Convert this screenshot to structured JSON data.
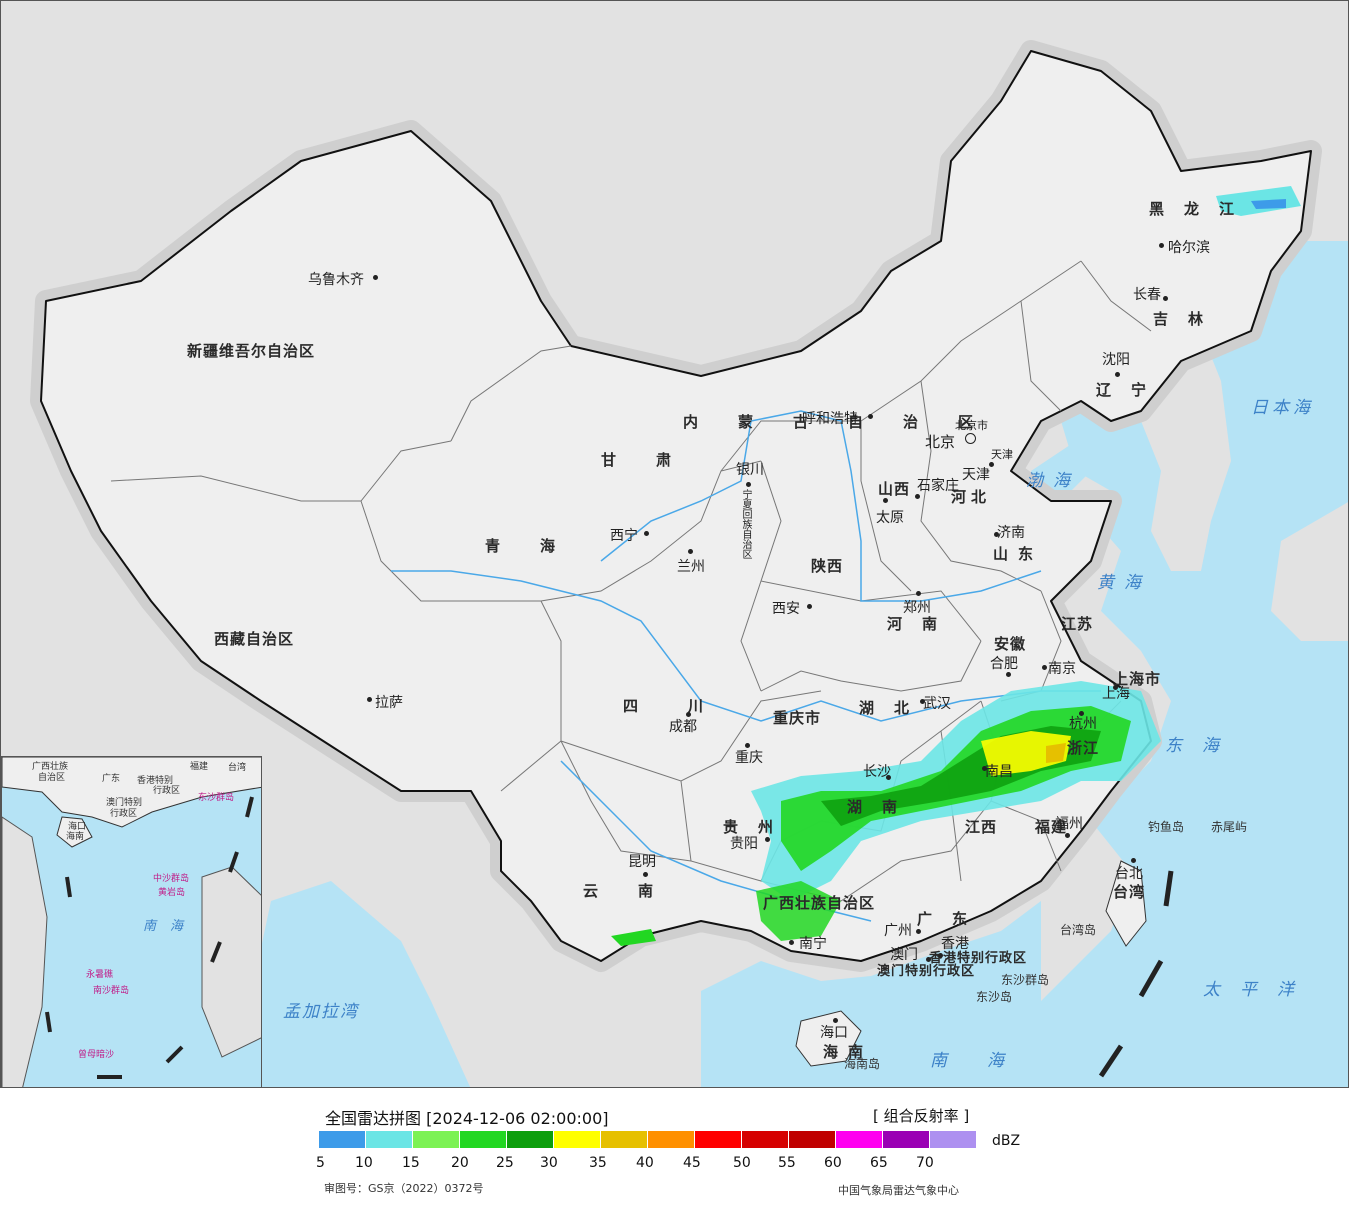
{
  "map": {
    "colors": {
      "land": "#efefef",
      "neighbor": "#e2e2e2",
      "sea": "#b5e3f5",
      "border": "#111111",
      "halo": "#cfcfcf",
      "river": "#4aa8e8"
    },
    "provinces": [
      "新疆维吾尔自治区",
      "西藏自治区",
      "青海",
      "甘肃",
      "内蒙古自治区",
      "黑龙江",
      "吉林",
      "辽宁",
      "河北",
      "山西",
      "陕西",
      "山东",
      "河南",
      "江苏",
      "安徽",
      "上海市",
      "湖北",
      "重庆市",
      "四川",
      "浙江",
      "湖南",
      "贵州",
      "云南",
      "广西壮族自治区",
      "广东",
      "江西",
      "福建",
      "台湾",
      "海南",
      "宁夏回族自治区",
      "北京市",
      "天津",
      "香港特别行政区",
      "澳门特别行政区"
    ],
    "cities": [
      "乌鲁木齐",
      "拉萨",
      "西宁",
      "兰州",
      "银川",
      "呼和浩特",
      "北京",
      "天津",
      "石家庄",
      "太原",
      "济南",
      "郑州",
      "西安",
      "成都",
      "重庆",
      "武汉",
      "合肥",
      "南京",
      "上海",
      "杭州",
      "南昌",
      "长沙",
      "贵阳",
      "昆明",
      "南宁",
      "广州",
      "福州",
      "台北",
      "海口",
      "沈阳",
      "长春",
      "哈尔滨",
      "香港",
      "澳门"
    ],
    "seas": [
      "日本海",
      "渤海",
      "黄海",
      "东海",
      "太平洋",
      "南海",
      "孟加拉湾"
    ],
    "islands": [
      "钓鱼岛",
      "赤尾屿",
      "台湾岛",
      "东沙群岛",
      "东沙岛",
      "海南岛"
    ],
    "inset": {
      "labels": [
        "广西壮族",
        "自治区",
        "广东",
        "福建",
        "台湾",
        "香港特别",
        "行政区",
        "澳门特别",
        "行政区",
        "海口",
        "海南",
        "南海",
        "东沙群岛",
        "中沙群岛",
        "黄岩岛",
        "南沙群岛",
        "永暑礁",
        "曾母暗沙"
      ],
      "sea": "南海"
    }
  },
  "legend": {
    "title": "全国雷达拼图 [2024-12-06 02:00:00]",
    "product": "[ 组合反射率 ]",
    "unit": "dBZ",
    "ticks": [
      "5",
      "10",
      "15",
      "20",
      "25",
      "30",
      "35",
      "40",
      "45",
      "50",
      "55",
      "60",
      "65",
      "70"
    ],
    "colors": [
      "#3d9be9",
      "#6be5e5",
      "#7cf254",
      "#22d722",
      "#0d9e0d",
      "#ffff00",
      "#e6c000",
      "#ff9000",
      "#ff0000",
      "#d60000",
      "#c00000",
      "#ff00f0",
      "#9a00b4",
      "#ad90f0"
    ],
    "approval": "审图号：GS京（2022）0372号",
    "producer": "中国气象局雷达气象中心"
  }
}
